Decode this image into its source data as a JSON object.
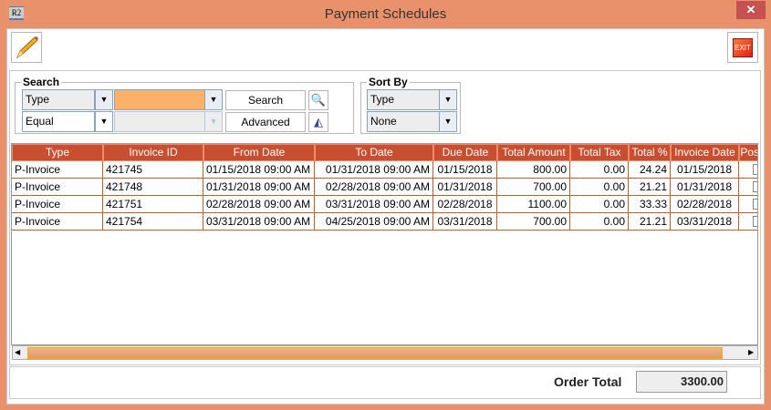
{
  "window": {
    "title": "Payment Schedules",
    "app_icon": "R2",
    "close": "✕"
  },
  "toolbar": {
    "edit_icon": "pencil-icon",
    "exit_label": "EXIT"
  },
  "search": {
    "legend": "Search",
    "field": "Type",
    "operator": "Equal",
    "value": "",
    "search_label": "Search",
    "advanced_label": "Advanced",
    "value_bg": "#FBB16A"
  },
  "sort": {
    "legend": "Sort By",
    "primary": "Type",
    "secondary": "None"
  },
  "table": {
    "header_color": "#C84E30",
    "columns": [
      "Type",
      "Invoice ID",
      "From Date",
      "To Date",
      "Due Date",
      "Total Amount",
      "Total Tax",
      "Total %",
      "Invoice Date",
      "Posted"
    ],
    "rows": [
      [
        "P-Invoice",
        "421745",
        "01/15/2018 09:00 AM",
        "01/31/2018 09:00 AM",
        "01/15/2018",
        "800.00",
        "0.00",
        "24.24",
        "01/15/2018"
      ],
      [
        "P-Invoice",
        "421748",
        "01/31/2018 09:00 AM",
        "02/28/2018 09:00 AM",
        "01/31/2018",
        "700.00",
        "0.00",
        "21.21",
        "01/31/2018"
      ],
      [
        "P-Invoice",
        "421751",
        "02/28/2018 09:00 AM",
        "03/31/2018 09:00 AM",
        "02/28/2018",
        "1100.00",
        "0.00",
        "33.33",
        "02/28/2018"
      ],
      [
        "P-Invoice",
        "421754",
        "03/31/2018 09:00 AM",
        "04/25/2018 09:00 AM",
        "03/31/2018",
        "700.00",
        "0.00",
        "21.21",
        "03/31/2018"
      ]
    ]
  },
  "footer": {
    "order_total_label": "Order Total",
    "order_total_value": "3300.00"
  }
}
